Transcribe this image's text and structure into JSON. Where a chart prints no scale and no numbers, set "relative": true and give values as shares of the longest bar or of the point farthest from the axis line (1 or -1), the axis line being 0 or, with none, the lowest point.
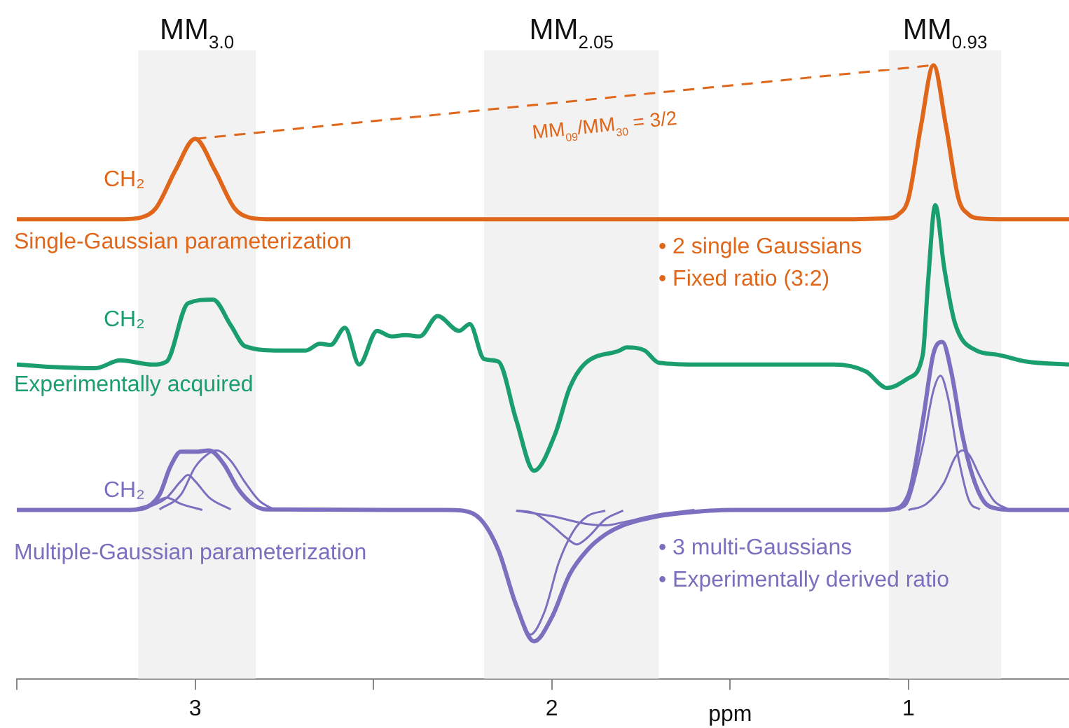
{
  "chart_data": {
    "type": "line",
    "relative": true,
    "xlabel": "ppm",
    "xlim": [
      3.5,
      0.55
    ],
    "xticks": [
      {
        "value": 3.5,
        "label": null
      },
      3,
      {
        "value": 2.5,
        "label": null
      },
      2,
      {
        "value": 1.5,
        "label": null
      },
      1
    ],
    "legend": false,
    "marker": "none",
    "bands": [
      {
        "axis": "x",
        "from": 3.16,
        "to": 2.83,
        "label": "MM$_{3.0}$",
        "color": "#f2f2f2"
      },
      {
        "axis": "x",
        "from": 2.19,
        "to": 1.7,
        "label": "MM$_{2.05}$",
        "color": "#f2f2f2"
      },
      {
        "axis": "x",
        "from": 1.055,
        "to": 0.74,
        "label": "MM$_{0.93}$",
        "color": "#f2f2f2"
      }
    ],
    "series": [
      {
        "name": "Single-Gaussian parameterization",
        "color": "#e0661a",
        "x": [
          3.5,
          3.2,
          3.15,
          3.11,
          3.055,
          3.0,
          2.945,
          2.89,
          2.85,
          2.8,
          1.2,
          1.05,
          1.03,
          1.0,
          0.965,
          0.93,
          0.895,
          0.86,
          0.83,
          0.81,
          0.75,
          0.55
        ],
        "values": [
          0.749,
          0.749,
          0.752,
          0.767,
          0.829,
          0.88,
          0.829,
          0.767,
          0.752,
          0.749,
          0.749,
          0.751,
          0.756,
          0.783,
          0.901,
          1.0,
          0.901,
          0.783,
          0.756,
          0.751,
          0.749,
          0.749
        ]
      },
      {
        "color": "#e0661a",
        "line_style": "dashed",
        "x": [
          3.0,
          0.93
        ],
        "values": [
          0.88,
          1.0
        ]
      },
      {
        "name": "Experimentally acquired",
        "color": "#1a9e6e",
        "x": [
          3.5,
          3.4,
          3.28,
          3.21,
          3.12,
          3.08,
          3.02,
          2.95,
          2.9,
          2.86,
          2.76,
          2.69,
          2.65,
          2.62,
          2.58,
          2.54,
          2.49,
          2.45,
          2.41,
          2.37,
          2.32,
          2.26,
          2.23,
          2.19,
          2.15,
          2.1,
          2.05,
          1.99,
          1.95,
          1.91,
          1.81,
          1.79,
          1.74,
          1.7,
          1.58,
          1.34,
          1.21,
          1.12,
          1.06,
          1.0,
          0.96,
          0.945,
          0.925,
          0.9,
          0.87,
          0.81,
          0.75,
          0.67,
          0.55
        ],
        "values": [
          0.512,
          0.508,
          0.506,
          0.519,
          0.512,
          0.517,
          0.612,
          0.618,
          0.576,
          0.542,
          0.535,
          0.535,
          0.546,
          0.544,
          0.572,
          0.512,
          0.567,
          0.558,
          0.56,
          0.558,
          0.591,
          0.567,
          0.578,
          0.521,
          0.517,
          0.422,
          0.339,
          0.4,
          0.474,
          0.512,
          0.535,
          0.54,
          0.535,
          0.515,
          0.512,
          0.512,
          0.512,
          0.501,
          0.474,
          0.49,
          0.528,
          0.648,
          0.772,
          0.67,
          0.58,
          0.535,
          0.528,
          0.517,
          0.512
        ]
      },
      {
        "name": "Multiple-Gaussian parameterization",
        "color": "#7b6fbf",
        "x": [
          3.5,
          3.2,
          3.15,
          3.1,
          3.07,
          3.04,
          3.0,
          2.96,
          2.92,
          2.88,
          2.84,
          2.8,
          2.3,
          2.25,
          2.2,
          2.15,
          2.1,
          2.05,
          2.0,
          1.95,
          1.9,
          1.85,
          1.8,
          1.7,
          1.6,
          1.5,
          1.1,
          1.05,
          1.0,
          0.96,
          0.93,
          0.905,
          0.88,
          0.85,
          0.82,
          0.79,
          0.75,
          0.7,
          0.55
        ],
        "values": [
          0.275,
          0.275,
          0.277,
          0.3,
          0.345,
          0.37,
          0.37,
          0.372,
          0.35,
          0.31,
          0.285,
          0.276,
          0.275,
          0.274,
          0.26,
          0.21,
          0.12,
          0.061,
          0.1,
          0.17,
          0.21,
          0.235,
          0.25,
          0.265,
          0.272,
          0.275,
          0.275,
          0.276,
          0.3,
          0.42,
          0.53,
          0.549,
          0.5,
          0.4,
          0.33,
          0.29,
          0.277,
          0.275,
          0.275
        ]
      },
      {
        "color": "#7b6fbf",
        "x": [
          3.18,
          3.12,
          3.08,
          3.04,
          2.98
        ],
        "values": [
          0.275,
          0.285,
          0.295,
          0.285,
          0.275
        ]
      },
      {
        "color": "#7b6fbf",
        "x": [
          3.15,
          3.08,
          3.04,
          3.02,
          3.0,
          2.96,
          2.9
        ],
        "values": [
          0.275,
          0.295,
          0.322,
          0.332,
          0.322,
          0.295,
          0.276
        ]
      },
      {
        "color": "#7b6fbf",
        "x": [
          3.1,
          3.04,
          3.0,
          2.96,
          2.94,
          2.9,
          2.86,
          2.82,
          2.78
        ],
        "values": [
          0.276,
          0.3,
          0.345,
          0.368,
          0.372,
          0.355,
          0.32,
          0.29,
          0.276
        ]
      },
      {
        "color": "#7b6fbf",
        "x": [
          2.25,
          2.2,
          2.15,
          2.1,
          2.06,
          2.02,
          1.98,
          1.94,
          1.9,
          1.85
        ],
        "values": [
          0.274,
          0.26,
          0.21,
          0.12,
          0.072,
          0.11,
          0.19,
          0.24,
          0.265,
          0.274
        ]
      },
      {
        "color": "#7b6fbf",
        "x": [
          2.1,
          2.05,
          2.0,
          1.96,
          1.93,
          1.9,
          1.85,
          1.8
        ],
        "values": [
          0.274,
          0.27,
          0.25,
          0.23,
          0.219,
          0.23,
          0.26,
          0.274
        ]
      },
      {
        "color": "#7b6fbf",
        "x": [
          2.1,
          2.0,
          1.9,
          1.85,
          1.8,
          1.7,
          1.6
        ],
        "values": [
          0.274,
          0.265,
          0.252,
          0.25,
          0.255,
          0.268,
          0.275
        ]
      },
      {
        "color": "#7b6fbf",
        "x": [
          1.03,
          1.0,
          0.96,
          0.93,
          0.91,
          0.89,
          0.86,
          0.83,
          0.8
        ],
        "values": [
          0.275,
          0.29,
          0.38,
          0.47,
          0.494,
          0.46,
          0.36,
          0.29,
          0.276
        ]
      },
      {
        "color": "#7b6fbf",
        "x": [
          1.0,
          0.95,
          0.9,
          0.87,
          0.85,
          0.83,
          0.8,
          0.76,
          0.72
        ],
        "values": [
          0.275,
          0.285,
          0.32,
          0.36,
          0.372,
          0.365,
          0.33,
          0.29,
          0.276
        ]
      }
    ],
    "annotations": [
      "CH₂",
      "CH₂",
      "CH₂",
      "MM$_{09}$/MM$_{30}$ = 3/2",
      "• 2 single Gaussians",
      "• Fixed ratio (3:2)",
      "• 3 multi-Gaussians",
      "• Experimentally derived ratio"
    ]
  }
}
